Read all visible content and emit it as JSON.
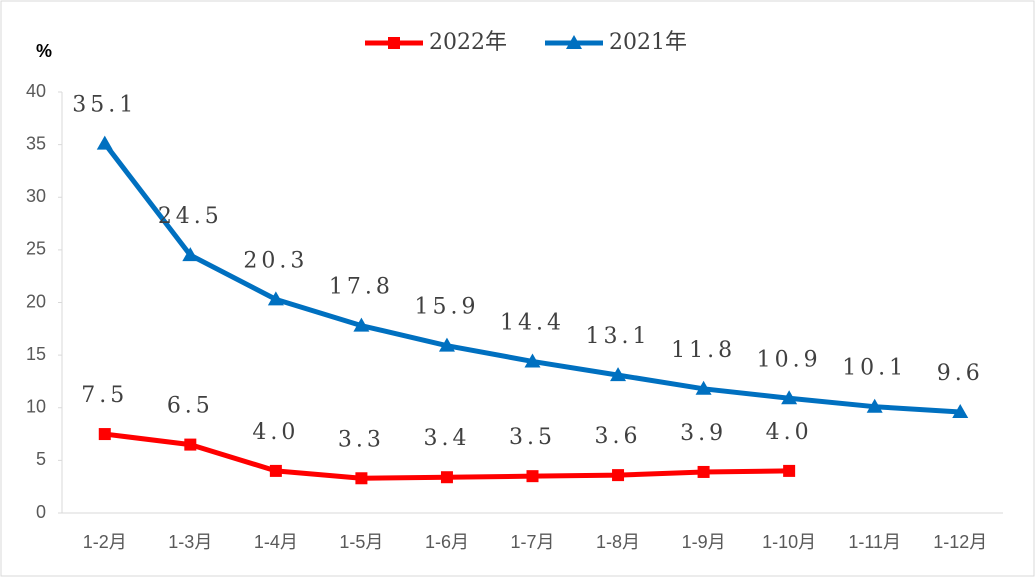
{
  "chart_data": {
    "type": "line",
    "y_label": "%",
    "categories": [
      "1-2月",
      "1-3月",
      "1-4月",
      "1-5月",
      "1-6月",
      "1-7月",
      "1-8月",
      "1-9月",
      "1-10月",
      "1-11月",
      "1-12月"
    ],
    "series": [
      {
        "name": "2022年",
        "color": "#ff0000",
        "marker": "square",
        "values": [
          7.5,
          6.5,
          4.0,
          3.3,
          3.4,
          3.5,
          3.6,
          3.9,
          4.0,
          null,
          null
        ],
        "value_labels": [
          "7.5",
          "6.5",
          "4.0",
          "3.3",
          "3.4",
          "3.5",
          "3.6",
          "3.9",
          "4.0",
          null,
          null
        ]
      },
      {
        "name": "2021年",
        "color": "#0070c0",
        "marker": "triangle",
        "values": [
          35.1,
          24.5,
          20.3,
          17.8,
          15.9,
          14.4,
          13.1,
          11.8,
          10.9,
          10.1,
          9.6
        ],
        "value_labels": [
          "35.1",
          "24.5",
          "20.3",
          "17.8",
          "15.9",
          "14.4",
          "13.1",
          "11.8",
          "10.9",
          "10.1",
          "9.6"
        ]
      }
    ],
    "ylim": [
      0,
      40
    ],
    "yticks": [
      0,
      5,
      10,
      15,
      20,
      25,
      30,
      35,
      40
    ],
    "grid": false,
    "legend": "top"
  }
}
